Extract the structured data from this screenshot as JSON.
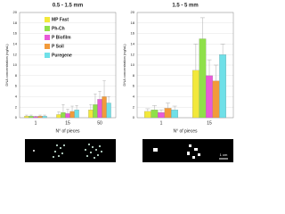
{
  "chart_data": [
    {
      "type": "bar",
      "title": "0.5 - 1.5 mm",
      "x_label": "N° of pieces",
      "y_label": "DNA concentration (ng/uL)",
      "categories": [
        "1",
        "15",
        "50"
      ],
      "ylim": [
        0,
        20
      ],
      "yticks": [
        0,
        2,
        4,
        6,
        8,
        10,
        12,
        14,
        16,
        18,
        20
      ],
      "grid": true,
      "series": [
        {
          "name": "MP Fast",
          "color": "#f2e83a",
          "values": [
            0.3,
            0.6,
            1.5
          ],
          "errors": [
            0.2,
            0.5,
            1.0
          ]
        },
        {
          "name": "Ph-Ch",
          "color": "#8fe04a",
          "values": [
            0.3,
            1.0,
            2.5
          ],
          "errors": [
            0.2,
            1.5,
            2.0
          ]
        },
        {
          "name": "P Biofilm",
          "color": "#e85ad8",
          "values": [
            0.2,
            0.8,
            3.5
          ],
          "errors": [
            0.1,
            0.8,
            1.5
          ]
        },
        {
          "name": "P Soil",
          "color": "#f29a3a",
          "values": [
            0.3,
            1.2,
            4.0
          ],
          "errors": [
            0.2,
            1.0,
            3.0
          ]
        },
        {
          "name": "Puregene",
          "color": "#6fe0e8",
          "values": [
            0.3,
            1.5,
            2.8
          ],
          "errors": [
            0.2,
            0.8,
            1.2
          ]
        }
      ]
    },
    {
      "type": "bar",
      "title": "1.5 - 5 mm",
      "x_label": "N° of pieces",
      "y_label": "DNA concentration (ng/uL)",
      "categories": [
        "1",
        "15"
      ],
      "ylim": [
        0,
        20
      ],
      "yticks": [
        0,
        2,
        4,
        6,
        8,
        10,
        12,
        14,
        16,
        18,
        20
      ],
      "grid": true,
      "series": [
        {
          "color": "#f2e83a",
          "values": [
            1.2,
            9.0
          ],
          "errors": [
            0.5,
            5.0
          ]
        },
        {
          "color": "#8fe04a",
          "values": [
            1.5,
            15.0
          ],
          "errors": [
            0.8,
            4.0
          ]
        },
        {
          "color": "#e85ad8",
          "values": [
            1.0,
            8.0
          ],
          "errors": [
            0.5,
            3.0
          ]
        },
        {
          "color": "#f29a3a",
          "values": [
            1.8,
            7.0
          ],
          "errors": [
            1.0,
            3.0
          ]
        },
        {
          "color": "#6fe0e8",
          "values": [
            1.5,
            12.0
          ],
          "errors": [
            0.7,
            2.0
          ]
        }
      ]
    }
  ],
  "image_strip": {
    "scale_label": "1 cm"
  }
}
